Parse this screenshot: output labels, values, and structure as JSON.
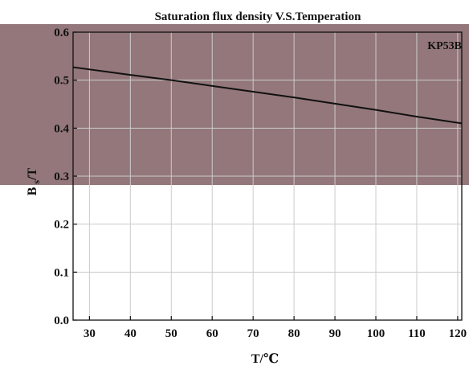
{
  "chart_data": {
    "type": "line",
    "title": "Saturation flux density V.S.Temperation",
    "xlabel": "T/℃",
    "ylabel_main": "B",
    "ylabel_sub": "Bs/T",
    "xlim": [
      26,
      121
    ],
    "ylim": [
      0,
      0.6
    ],
    "xticks": [
      30,
      40,
      50,
      60,
      70,
      80,
      90,
      100,
      110,
      120
    ],
    "yticks": [
      "0.0",
      "0.1",
      "0.2",
      "0.3",
      "0.4",
      "0.5",
      "0.6"
    ],
    "grid": true,
    "series": [
      {
        "name": "KP53B",
        "x": [
          26,
          40,
          50,
          60,
          70,
          80,
          90,
          100,
          110,
          121
        ],
        "y": [
          0.527,
          0.511,
          0.5,
          0.488,
          0.476,
          0.464,
          0.451,
          0.438,
          0.424,
          0.41
        ]
      }
    ]
  },
  "colors": {
    "shaded_band": "#93777a",
    "line": "#111111",
    "grid": "#cccccc"
  }
}
